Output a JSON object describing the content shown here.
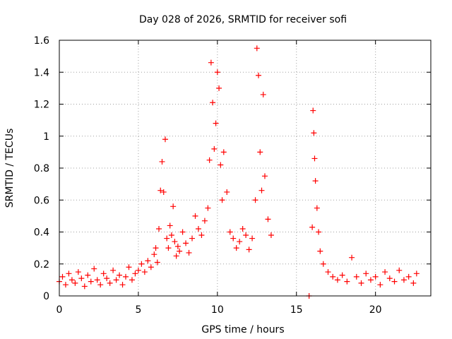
{
  "chart_data": {
    "type": "scatter",
    "title": "Day 028 of 2026, SRMTID for receiver sofi",
    "xlabel": "GPS time / hours",
    "ylabel": "SRMTID / TECUs",
    "xlim": [
      0,
      23.5
    ],
    "ylim": [
      0,
      1.6
    ],
    "xticks": [
      0,
      5,
      10,
      15,
      20
    ],
    "xtick_labels": [
      "0",
      "5",
      "10",
      "15",
      "20"
    ],
    "yticks": [
      0,
      0.2,
      0.4,
      0.6,
      0.8,
      1,
      1.2,
      1.4,
      1.6
    ],
    "ytick_labels": [
      "0",
      "0.2",
      "0.4",
      "0.6",
      "0.8",
      "1",
      "1.2",
      "1.4",
      "1.6"
    ],
    "grid": true,
    "marker": "+",
    "color": "#ff0000",
    "series": [
      {
        "name": "SRMTID",
        "points": [
          [
            0.0,
            0.09
          ],
          [
            0.2,
            0.12
          ],
          [
            0.4,
            0.07
          ],
          [
            0.6,
            0.14
          ],
          [
            0.8,
            0.1
          ],
          [
            1.0,
            0.08
          ],
          [
            1.2,
            0.15
          ],
          [
            1.4,
            0.11
          ],
          [
            1.6,
            0.06
          ],
          [
            1.8,
            0.13
          ],
          [
            2.0,
            0.09
          ],
          [
            2.2,
            0.17
          ],
          [
            2.4,
            0.1
          ],
          [
            2.6,
            0.07
          ],
          [
            2.8,
            0.14
          ],
          [
            3.0,
            0.11
          ],
          [
            3.2,
            0.08
          ],
          [
            3.4,
            0.16
          ],
          [
            3.6,
            0.1
          ],
          [
            3.8,
            0.13
          ],
          [
            4.0,
            0.07
          ],
          [
            4.2,
            0.12
          ],
          [
            4.4,
            0.18
          ],
          [
            4.6,
            0.1
          ],
          [
            4.8,
            0.14
          ],
          [
            5.0,
            0.16
          ],
          [
            5.2,
            0.2
          ],
          [
            5.4,
            0.15
          ],
          [
            5.6,
            0.22
          ],
          [
            5.8,
            0.18
          ],
          [
            6.0,
            0.26
          ],
          [
            6.1,
            0.3
          ],
          [
            6.2,
            0.21
          ],
          [
            6.3,
            0.42
          ],
          [
            6.4,
            0.66
          ],
          [
            6.5,
            0.84
          ],
          [
            6.6,
            0.65
          ],
          [
            6.7,
            0.98
          ],
          [
            6.8,
            0.36
          ],
          [
            6.9,
            0.3
          ],
          [
            7.0,
            0.44
          ],
          [
            7.1,
            0.38
          ],
          [
            7.2,
            0.56
          ],
          [
            7.3,
            0.34
          ],
          [
            7.4,
            0.25
          ],
          [
            7.5,
            0.31
          ],
          [
            7.6,
            0.28
          ],
          [
            7.8,
            0.4
          ],
          [
            8.0,
            0.33
          ],
          [
            8.2,
            0.27
          ],
          [
            8.4,
            0.36
          ],
          [
            8.6,
            0.5
          ],
          [
            8.8,
            0.42
          ],
          [
            9.0,
            0.38
          ],
          [
            9.2,
            0.47
          ],
          [
            9.4,
            0.55
          ],
          [
            9.5,
            0.85
          ],
          [
            9.6,
            1.46
          ],
          [
            9.7,
            1.21
          ],
          [
            9.8,
            0.92
          ],
          [
            9.9,
            1.08
          ],
          [
            10.0,
            1.4
          ],
          [
            10.1,
            1.3
          ],
          [
            10.2,
            0.82
          ],
          [
            10.3,
            0.6
          ],
          [
            10.4,
            0.9
          ],
          [
            10.6,
            0.65
          ],
          [
            10.8,
            0.4
          ],
          [
            11.0,
            0.36
          ],
          [
            11.2,
            0.3
          ],
          [
            11.4,
            0.34
          ],
          [
            11.6,
            0.42
          ],
          [
            11.8,
            0.38
          ],
          [
            12.0,
            0.29
          ],
          [
            12.2,
            0.36
          ],
          [
            12.4,
            0.6
          ],
          [
            12.5,
            1.55
          ],
          [
            12.6,
            1.38
          ],
          [
            12.7,
            0.9
          ],
          [
            12.8,
            0.66
          ],
          [
            12.9,
            1.26
          ],
          [
            13.0,
            0.75
          ],
          [
            13.2,
            0.48
          ],
          [
            13.4,
            0.38
          ],
          [
            15.8,
            0.0
          ],
          [
            16.0,
            0.43
          ],
          [
            16.05,
            1.16
          ],
          [
            16.1,
            1.02
          ],
          [
            16.15,
            0.86
          ],
          [
            16.2,
            0.72
          ],
          [
            16.3,
            0.55
          ],
          [
            16.4,
            0.4
          ],
          [
            16.5,
            0.28
          ],
          [
            16.7,
            0.2
          ],
          [
            17.0,
            0.15
          ],
          [
            17.3,
            0.12
          ],
          [
            17.6,
            0.1
          ],
          [
            17.9,
            0.13
          ],
          [
            18.2,
            0.09
          ],
          [
            18.5,
            0.24
          ],
          [
            18.8,
            0.12
          ],
          [
            19.1,
            0.08
          ],
          [
            19.4,
            0.14
          ],
          [
            19.7,
            0.1
          ],
          [
            20.0,
            0.12
          ],
          [
            20.3,
            0.07
          ],
          [
            20.6,
            0.15
          ],
          [
            20.9,
            0.11
          ],
          [
            21.2,
            0.09
          ],
          [
            21.5,
            0.16
          ],
          [
            21.8,
            0.1
          ],
          [
            22.1,
            0.12
          ],
          [
            22.4,
            0.08
          ],
          [
            22.6,
            0.14
          ]
        ]
      }
    ]
  }
}
